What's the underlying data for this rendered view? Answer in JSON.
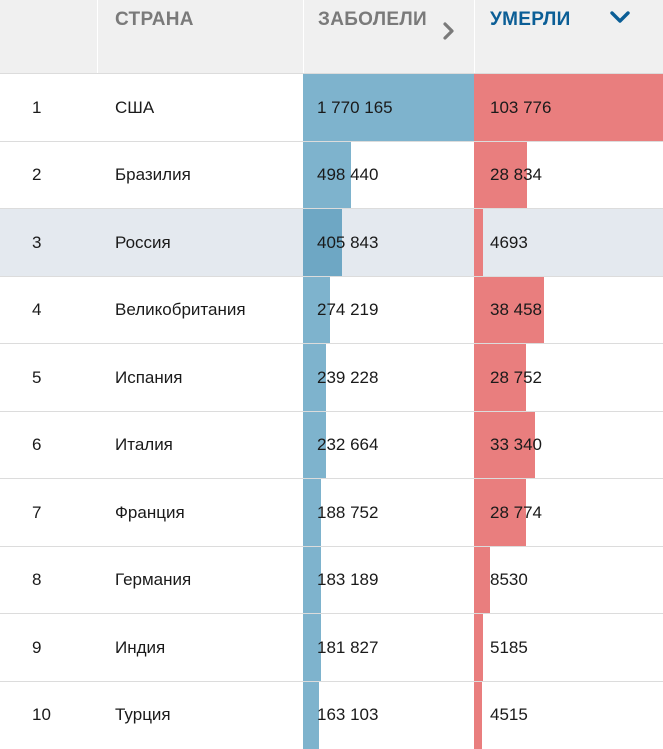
{
  "header": {
    "rank_label": "",
    "country_label": "СТРАНА",
    "cases_label": "ЗАБОЛЕЛИ",
    "deaths_label": "УМЕРЛИ",
    "cases_sort_icon": "chevron-right-icon",
    "deaths_sort_icon": "chevron-down-icon",
    "sorted_by": "deaths"
  },
  "colors": {
    "cases_bar": "#7eb3cd",
    "deaths_bar": "#e97e7e",
    "active_header": "#0b5e96",
    "inactive_header": "#7a7a7a",
    "highlight_row": "#e4e9ef"
  },
  "rows": [
    {
      "rank": "1",
      "country": "США",
      "cases": "1 770 165",
      "deaths": "103 776",
      "cases_value": 1770165,
      "deaths_value": 103776,
      "highlighted": false
    },
    {
      "rank": "2",
      "country": "Бразилия",
      "cases": "498 440",
      "deaths": "28 834",
      "cases_value": 498440,
      "deaths_value": 28834,
      "highlighted": false
    },
    {
      "rank": "3",
      "country": "Россия",
      "cases": "405 843",
      "deaths": "4693",
      "cases_value": 405843,
      "deaths_value": 4693,
      "highlighted": true
    },
    {
      "rank": "4",
      "country": "Великобритания",
      "cases": "274 219",
      "deaths": "38 458",
      "cases_value": 274219,
      "deaths_value": 38458,
      "highlighted": false
    },
    {
      "rank": "5",
      "country": "Испания",
      "cases": "239 228",
      "deaths": "28 752",
      "cases_value": 239228,
      "deaths_value": 28752,
      "highlighted": false
    },
    {
      "rank": "6",
      "country": "Италия",
      "cases": "232 664",
      "deaths": "33 340",
      "cases_value": 232664,
      "deaths_value": 33340,
      "highlighted": false
    },
    {
      "rank": "7",
      "country": "Франция",
      "cases": "188 752",
      "deaths": "28 774",
      "cases_value": 188752,
      "deaths_value": 28774,
      "highlighted": false
    },
    {
      "rank": "8",
      "country": "Германия",
      "cases": "183 189",
      "deaths": "8530",
      "cases_value": 183189,
      "deaths_value": 8530,
      "highlighted": false
    },
    {
      "rank": "9",
      "country": "Индия",
      "cases": "181 827",
      "deaths": "5185",
      "cases_value": 181827,
      "deaths_value": 5185,
      "highlighted": false
    },
    {
      "rank": "10",
      "country": "Турция",
      "cases": "163 103",
      "deaths": "4515",
      "cases_value": 163103,
      "deaths_value": 4515,
      "highlighted": false
    }
  ]
}
